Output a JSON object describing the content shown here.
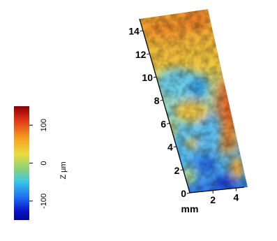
{
  "chart_data": {
    "type": "surface-3d",
    "colormap": [
      "#8a0000",
      "#e03218",
      "#f5a01e",
      "#ebdc41",
      "#8cd278",
      "#3cc8e6",
      "#1e6ef0",
      "#0a14c8",
      "#000a8c"
    ],
    "colorbar": {
      "label": "Z µm",
      "ticks": [
        "100",
        "0",
        "-100"
      ],
      "range": [
        -150,
        150
      ]
    },
    "y_axis": {
      "ticks": [
        "0",
        "2",
        "4",
        "6",
        "8",
        "10",
        "12",
        "14"
      ],
      "range": [
        0,
        15
      ]
    },
    "x_axis": {
      "ticks": [
        "2",
        "4"
      ],
      "range": [
        0,
        5
      ]
    },
    "axis_unit": "mm"
  }
}
